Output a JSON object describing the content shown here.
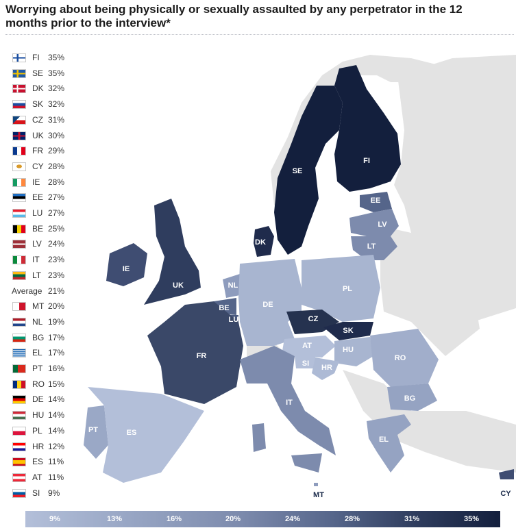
{
  "title": "Worrying about being physically or sexually assaulted by any perpetrator in the 12 months prior to the interview*",
  "chart_data": {
    "type": "choropleth-map",
    "title": "Worrying about being physically or sexually assaulted by any perpetrator in the 12 months prior to the interview*",
    "unit": "%",
    "average": {
      "label": "Average",
      "value": 21
    },
    "countries": [
      {
        "code": "FI",
        "value": 35
      },
      {
        "code": "SE",
        "value": 35
      },
      {
        "code": "DK",
        "value": 32
      },
      {
        "code": "SK",
        "value": 32
      },
      {
        "code": "CZ",
        "value": 31
      },
      {
        "code": "UK",
        "value": 30
      },
      {
        "code": "FR",
        "value": 29
      },
      {
        "code": "CY",
        "value": 28
      },
      {
        "code": "IE",
        "value": 28
      },
      {
        "code": "EE",
        "value": 27
      },
      {
        "code": "LU",
        "value": 27
      },
      {
        "code": "BE",
        "value": 25
      },
      {
        "code": "LV",
        "value": 24
      },
      {
        "code": "IT",
        "value": 23
      },
      {
        "code": "LT",
        "value": 23
      },
      {
        "code": "MT",
        "value": 20
      },
      {
        "code": "NL",
        "value": 19
      },
      {
        "code": "BG",
        "value": 17
      },
      {
        "code": "EL",
        "value": 17
      },
      {
        "code": "PT",
        "value": 16
      },
      {
        "code": "RO",
        "value": 15
      },
      {
        "code": "DE",
        "value": 14
      },
      {
        "code": "HU",
        "value": 14
      },
      {
        "code": "PL",
        "value": 14
      },
      {
        "code": "HR",
        "value": 12
      },
      {
        "code": "ES",
        "value": 11
      },
      {
        "code": "AT",
        "value": 11
      },
      {
        "code": "SI",
        "value": 9
      }
    ],
    "color_scale": {
      "ticks": [
        "9%",
        "13%",
        "16%",
        "20%",
        "24%",
        "28%",
        "31%",
        "35%"
      ],
      "range": [
        9,
        35
      ],
      "low_color": "#b3bfd9",
      "high_color": "#131f3d"
    },
    "map_labels": [
      "FI",
      "SE",
      "EE",
      "LV",
      "LT",
      "DK",
      "IE",
      "UK",
      "NL",
      "BE",
      "LU",
      "DE",
      "PL",
      "CZ",
      "SK",
      "FR",
      "AT",
      "HU",
      "RO",
      "SI",
      "HR",
      "BG",
      "IT",
      "PT",
      "ES",
      "EL",
      "MT",
      "CY"
    ]
  }
}
